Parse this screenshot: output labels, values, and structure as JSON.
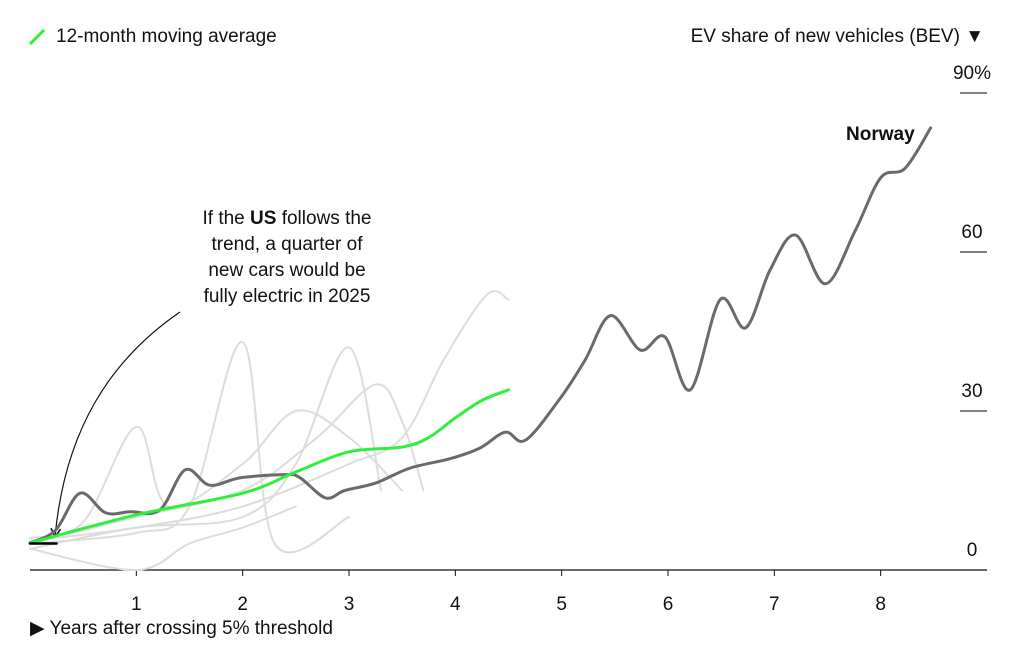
{
  "chart_data": {
    "type": "line",
    "legend_corner": "top-left",
    "y_axis_title": "EV share of new vehicles (BEV) ▼",
    "x_axis_title": "▶ Years after crossing 5% threshold",
    "annotation": {
      "before": "If the ",
      "bold": "US",
      "after": " follows the",
      "lines": [
        "trend, a quarter of",
        "new cars would be",
        "fully electric in 2025"
      ]
    },
    "xlim": [
      0,
      9
    ],
    "xticks": [
      1,
      2,
      3,
      4,
      5,
      6,
      7,
      8
    ],
    "ylim": [
      0,
      90
    ],
    "yticks": [
      0,
      30,
      60,
      {
        "value": 90,
        "label": "90%"
      }
    ],
    "series": [
      {
        "color": "#dcdcdc",
        "x": [
          0,
          1,
          2,
          3,
          3.5,
          3.9,
          4.3,
          4.5
        ],
        "values": [
          5.5,
          8,
          12,
          20,
          25,
          40,
          52,
          51
        ]
      },
      {
        "color": "#dcdcdc",
        "x": [
          0,
          1,
          1.5,
          2,
          2.3,
          3
        ],
        "values": [
          5,
          7,
          12,
          43,
          5,
          10
        ]
      },
      {
        "color": "#dcdcdc",
        "x": [
          0,
          1,
          2,
          2.5,
          3,
          3.3
        ],
        "values": [
          4,
          8,
          10,
          20,
          42,
          15
        ]
      },
      {
        "color": "#dcdcdc",
        "x": [
          0,
          1,
          2,
          2.7,
          3.25,
          3.5,
          3.7
        ],
        "values": [
          5,
          10,
          15,
          25,
          35,
          28,
          15
        ]
      },
      {
        "color": "#dcdcdc",
        "x": [
          0,
          0.5,
          1,
          1.3,
          2,
          2.5,
          3,
          3.5
        ],
        "values": [
          6,
          9,
          27,
          12,
          20,
          30,
          25,
          15
        ]
      },
      {
        "color": "#dcdcdc",
        "x": [
          0,
          1,
          1.5,
          2,
          2.5
        ],
        "values": [
          4,
          0,
          5,
          8,
          12
        ]
      },
      {
        "name": "Norway",
        "direct_label": true,
        "color": "#6a6a6a",
        "x": [
          0,
          0.24,
          0.47,
          0.71,
          0.94,
          1.22,
          1.46,
          1.69,
          1.98,
          2.4,
          2.54,
          2.78,
          2.96,
          3.25,
          3.57,
          3.95,
          4.23,
          4.47,
          4.66,
          4.99,
          5.22,
          5.46,
          5.74,
          5.97,
          6.21,
          6.49,
          6.73,
          6.96,
          7.2,
          7.48,
          7.76,
          8.0,
          8.23,
          8.47
        ],
        "values": [
          5.1,
          7.5,
          14.5,
          10.8,
          11,
          11.3,
          18.9,
          16,
          17.4,
          18,
          17.4,
          13.6,
          15,
          16.4,
          19.2,
          21,
          23,
          26,
          24.5,
          32.5,
          39.6,
          48,
          41.5,
          44,
          34,
          51,
          45.7,
          56.6,
          63.2,
          54,
          64,
          74,
          75.8,
          83.4
        ]
      },
      {
        "name": "12-month moving average",
        "color": "#2ef03c",
        "x": [
          0,
          1,
          2,
          2.5,
          3,
          3.5,
          3.75,
          4,
          4.25,
          4.5
        ],
        "values": [
          5.1,
          10.4,
          14.5,
          18.5,
          22.3,
          23.2,
          25,
          28.7,
          32,
          34
        ]
      },
      {
        "color": "#000000",
        "x": [
          0,
          0.25
        ],
        "values": [
          5,
          5
        ]
      }
    ]
  }
}
